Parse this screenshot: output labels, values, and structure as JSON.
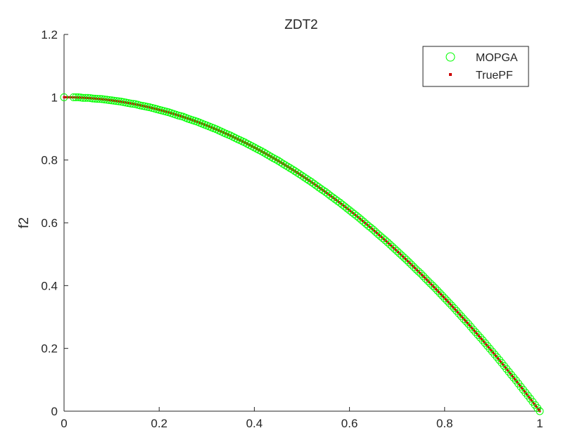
{
  "chart_data": {
    "type": "scatter",
    "title": "ZDT2",
    "xlabel": "",
    "ylabel": "f2",
    "xlim": [
      0,
      1
    ],
    "ylim": [
      0,
      1.2
    ],
    "xticks": [
      "0",
      "0.2",
      "0.4",
      "0.6",
      "0.8",
      "1"
    ],
    "yticks": [
      "0",
      "0.2",
      "0.4",
      "0.6",
      "0.8",
      "1",
      "1.2"
    ],
    "grid": false,
    "legend_position": "top-right",
    "series": [
      {
        "name": "MOPGA",
        "marker": "circle",
        "color": "#00ff00",
        "x": [
          0,
          0.02,
          0.03,
          0.04,
          0.05,
          0.06,
          0.07,
          0.08,
          0.09,
          0.1,
          0.11,
          0.12,
          0.13,
          0.14,
          0.15,
          0.16,
          0.17,
          0.18,
          0.19,
          0.2,
          0.21,
          0.22,
          0.23,
          0.24,
          0.25,
          0.26,
          0.27,
          0.28,
          0.29,
          0.3,
          0.31,
          0.32,
          0.33,
          0.34,
          0.35,
          0.36,
          0.37,
          0.38,
          0.39,
          0.4,
          0.41,
          0.42,
          0.43,
          0.44,
          0.45,
          0.46,
          0.47,
          0.48,
          0.49,
          0.5,
          0.51,
          0.52,
          0.53,
          0.54,
          0.55,
          0.56,
          0.57,
          0.58,
          0.59,
          0.6,
          0.61,
          0.62,
          0.63,
          0.64,
          0.65,
          0.66,
          0.67,
          0.68,
          0.69,
          0.7,
          0.71,
          0.72,
          0.73,
          0.74,
          0.75,
          0.76,
          0.77,
          0.78,
          0.79,
          0.8,
          0.81,
          0.82,
          0.83,
          0.84,
          0.85,
          0.86,
          0.87,
          0.88,
          0.89,
          0.9,
          0.91,
          0.92,
          0.93,
          0.94,
          0.95,
          0.96,
          0.97,
          0.98,
          0.99,
          1.0
        ],
        "y": [
          1,
          1.0,
          1.0,
          0.998,
          0.998,
          0.996,
          0.995,
          0.994,
          0.992,
          0.99,
          0.988,
          0.986,
          0.983,
          0.98,
          0.978,
          0.974,
          0.971,
          0.968,
          0.964,
          0.96,
          0.956,
          0.952,
          0.947,
          0.942,
          0.938,
          0.932,
          0.927,
          0.922,
          0.916,
          0.91,
          0.904,
          0.898,
          0.891,
          0.884,
          0.878,
          0.87,
          0.863,
          0.856,
          0.848,
          0.84,
          0.832,
          0.824,
          0.815,
          0.806,
          0.798,
          0.788,
          0.779,
          0.77,
          0.76,
          0.75,
          0.74,
          0.73,
          0.719,
          0.708,
          0.698,
          0.686,
          0.675,
          0.664,
          0.652,
          0.64,
          0.628,
          0.616,
          0.603,
          0.59,
          0.578,
          0.564,
          0.551,
          0.538,
          0.524,
          0.51,
          0.496,
          0.482,
          0.467,
          0.452,
          0.438,
          0.422,
          0.407,
          0.392,
          0.376,
          0.36,
          0.344,
          0.328,
          0.311,
          0.294,
          0.278,
          0.26,
          0.243,
          0.226,
          0.208,
          0.19,
          0.172,
          0.154,
          0.135,
          0.116,
          0.098,
          0.078,
          0.059,
          0.04,
          0.02,
          0.0
        ]
      },
      {
        "name": "TruePF",
        "marker": "dot",
        "color": "#cc0000",
        "function": "f2 = 1 - f1^2",
        "x_range": [
          0,
          1
        ]
      }
    ]
  }
}
